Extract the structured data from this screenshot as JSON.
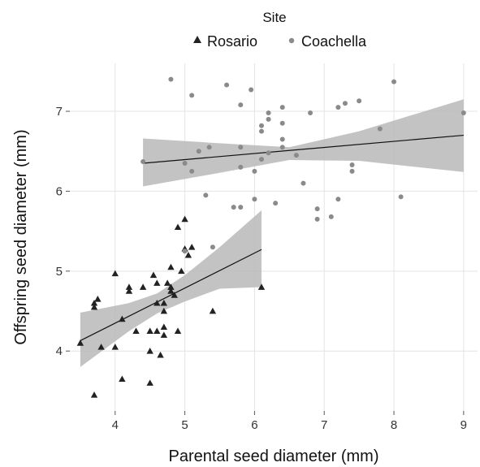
{
  "chart_data": {
    "type": "scatter",
    "xlabel": "Parental seed diameter (mm)",
    "ylabel": "Offspring seed diameter (mm)",
    "xlim": [
      3.35,
      9.2
    ],
    "ylim": [
      3.25,
      7.6
    ],
    "xticks": [
      4,
      5,
      6,
      7,
      8,
      9
    ],
    "yticks": [
      4,
      5,
      6,
      7
    ],
    "grid": true,
    "legend": {
      "title": "Site",
      "position": "top"
    },
    "series": [
      {
        "name": "Rosario",
        "marker": "triangle",
        "color": "#222222",
        "points": [
          [
            3.5,
            4.1
          ],
          [
            3.7,
            4.6
          ],
          [
            3.75,
            4.65
          ],
          [
            3.7,
            4.55
          ],
          [
            3.8,
            4.05
          ],
          [
            3.7,
            3.45
          ],
          [
            4.0,
            4.97
          ],
          [
            4.0,
            4.05
          ],
          [
            4.1,
            4.4
          ],
          [
            4.1,
            3.65
          ],
          [
            4.2,
            4.8
          ],
          [
            4.2,
            4.75
          ],
          [
            4.3,
            4.25
          ],
          [
            4.4,
            4.8
          ],
          [
            4.5,
            4.0
          ],
          [
            4.5,
            3.6
          ],
          [
            4.5,
            4.25
          ],
          [
            4.6,
            4.85
          ],
          [
            4.6,
            4.25
          ],
          [
            4.6,
            4.6
          ],
          [
            4.65,
            3.95
          ],
          [
            4.7,
            4.3
          ],
          [
            4.7,
            4.6
          ],
          [
            4.7,
            4.2
          ],
          [
            4.7,
            4.5
          ],
          [
            4.75,
            4.85
          ],
          [
            4.8,
            5.05
          ],
          [
            4.8,
            4.75
          ],
          [
            4.85,
            4.7
          ],
          [
            4.9,
            5.55
          ],
          [
            4.9,
            4.25
          ],
          [
            4.95,
            5.0
          ],
          [
            5.0,
            5.65
          ],
          [
            5.0,
            5.28
          ],
          [
            5.05,
            5.2
          ],
          [
            5.1,
            5.3
          ],
          [
            5.4,
            4.5
          ],
          [
            6.1,
            4.8
          ],
          [
            4.55,
            4.95
          ],
          [
            4.8,
            4.8
          ]
        ]
      },
      {
        "name": "Coachella",
        "marker": "circle",
        "color": "#8a8a8a",
        "points": [
          [
            4.4,
            6.37
          ],
          [
            4.8,
            7.4
          ],
          [
            5.0,
            6.35
          ],
          [
            5.1,
            7.2
          ],
          [
            5.1,
            6.25
          ],
          [
            5.2,
            6.5
          ],
          [
            5.3,
            5.95
          ],
          [
            5.4,
            5.3
          ],
          [
            5.6,
            7.33
          ],
          [
            5.7,
            5.8
          ],
          [
            5.8,
            7.08
          ],
          [
            5.8,
            6.55
          ],
          [
            5.8,
            6.3
          ],
          [
            5.8,
            5.8
          ],
          [
            5.95,
            7.27
          ],
          [
            6.0,
            6.25
          ],
          [
            6.0,
            5.9
          ],
          [
            6.1,
            6.82
          ],
          [
            6.1,
            6.75
          ],
          [
            6.1,
            6.4
          ],
          [
            6.2,
            6.98
          ],
          [
            6.2,
            6.9
          ],
          [
            6.2,
            6.48
          ],
          [
            6.3,
            5.85
          ],
          [
            6.4,
            7.05
          ],
          [
            6.4,
            6.85
          ],
          [
            6.4,
            6.65
          ],
          [
            6.4,
            6.55
          ],
          [
            6.6,
            6.45
          ],
          [
            6.7,
            6.1
          ],
          [
            6.8,
            6.98
          ],
          [
            6.9,
            5.78
          ],
          [
            6.9,
            5.65
          ],
          [
            7.1,
            5.68
          ],
          [
            7.2,
            7.05
          ],
          [
            7.2,
            5.9
          ],
          [
            7.3,
            7.1
          ],
          [
            7.4,
            6.33
          ],
          [
            7.4,
            6.25
          ],
          [
            7.5,
            7.13
          ],
          [
            7.8,
            6.78
          ],
          [
            8.0,
            7.37
          ],
          [
            8.1,
            5.93
          ],
          [
            9.0,
            6.98
          ],
          [
            5.0,
            5.25
          ],
          [
            5.35,
            6.55
          ]
        ]
      }
    ],
    "fits": [
      {
        "name": "Rosario",
        "x": [
          3.5,
          6.1
        ],
        "y": [
          4.13,
          5.27
        ],
        "band": {
          "x": [
            3.5,
            4.2,
            4.6,
            5.0,
            5.5,
            6.1
          ],
          "lower": [
            3.8,
            4.25,
            4.47,
            4.62,
            4.78,
            4.8
          ],
          "upper": [
            4.48,
            4.6,
            4.72,
            4.95,
            5.3,
            5.76
          ]
        }
      },
      {
        "name": "Coachella",
        "x": [
          4.4,
          9.0
        ],
        "y": [
          6.35,
          6.7
        ],
        "band": {
          "x": [
            4.4,
            5.5,
            6.5,
            7.5,
            9.0
          ],
          "lower": [
            6.06,
            6.23,
            6.39,
            6.38,
            6.24
          ],
          "upper": [
            6.66,
            6.6,
            6.55,
            6.75,
            7.15
          ]
        }
      }
    ]
  }
}
